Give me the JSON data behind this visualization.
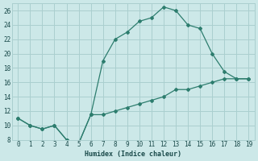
{
  "xlabel": "Humidex (Indice chaleur)",
  "line1_x": [
    0,
    1,
    2,
    3,
    4,
    5,
    6,
    7,
    8,
    9,
    10,
    11,
    12,
    13,
    14,
    15,
    16,
    17,
    18,
    19
  ],
  "line1_y": [
    11,
    10,
    9.5,
    10,
    8,
    7.5,
    11.5,
    19,
    22,
    23,
    24.5,
    25,
    26.5,
    26,
    24,
    23.5,
    20,
    17.5,
    16.5,
    16.5
  ],
  "line2_x": [
    0,
    1,
    2,
    3,
    4,
    5,
    6,
    7,
    8,
    9,
    10,
    11,
    12,
    13,
    14,
    15,
    16,
    17,
    18,
    19
  ],
  "line2_y": [
    11,
    10,
    9.5,
    10,
    8,
    7.5,
    11.5,
    11.5,
    12,
    12.5,
    13,
    13.5,
    14,
    15,
    15,
    15.5,
    16,
    16.5,
    16.5,
    16.5
  ],
  "line_color": "#2d7d6e",
  "bg_color": "#cce8e8",
  "grid_color": "#aacfcf",
  "ylim": [
    8,
    27
  ],
  "xlim": [
    -0.5,
    19.5
  ],
  "yticks": [
    8,
    10,
    12,
    14,
    16,
    18,
    20,
    22,
    24,
    26
  ],
  "xticks": [
    0,
    1,
    2,
    3,
    4,
    5,
    6,
    7,
    8,
    9,
    10,
    11,
    12,
    13,
    14,
    15,
    16,
    17,
    18,
    19
  ]
}
